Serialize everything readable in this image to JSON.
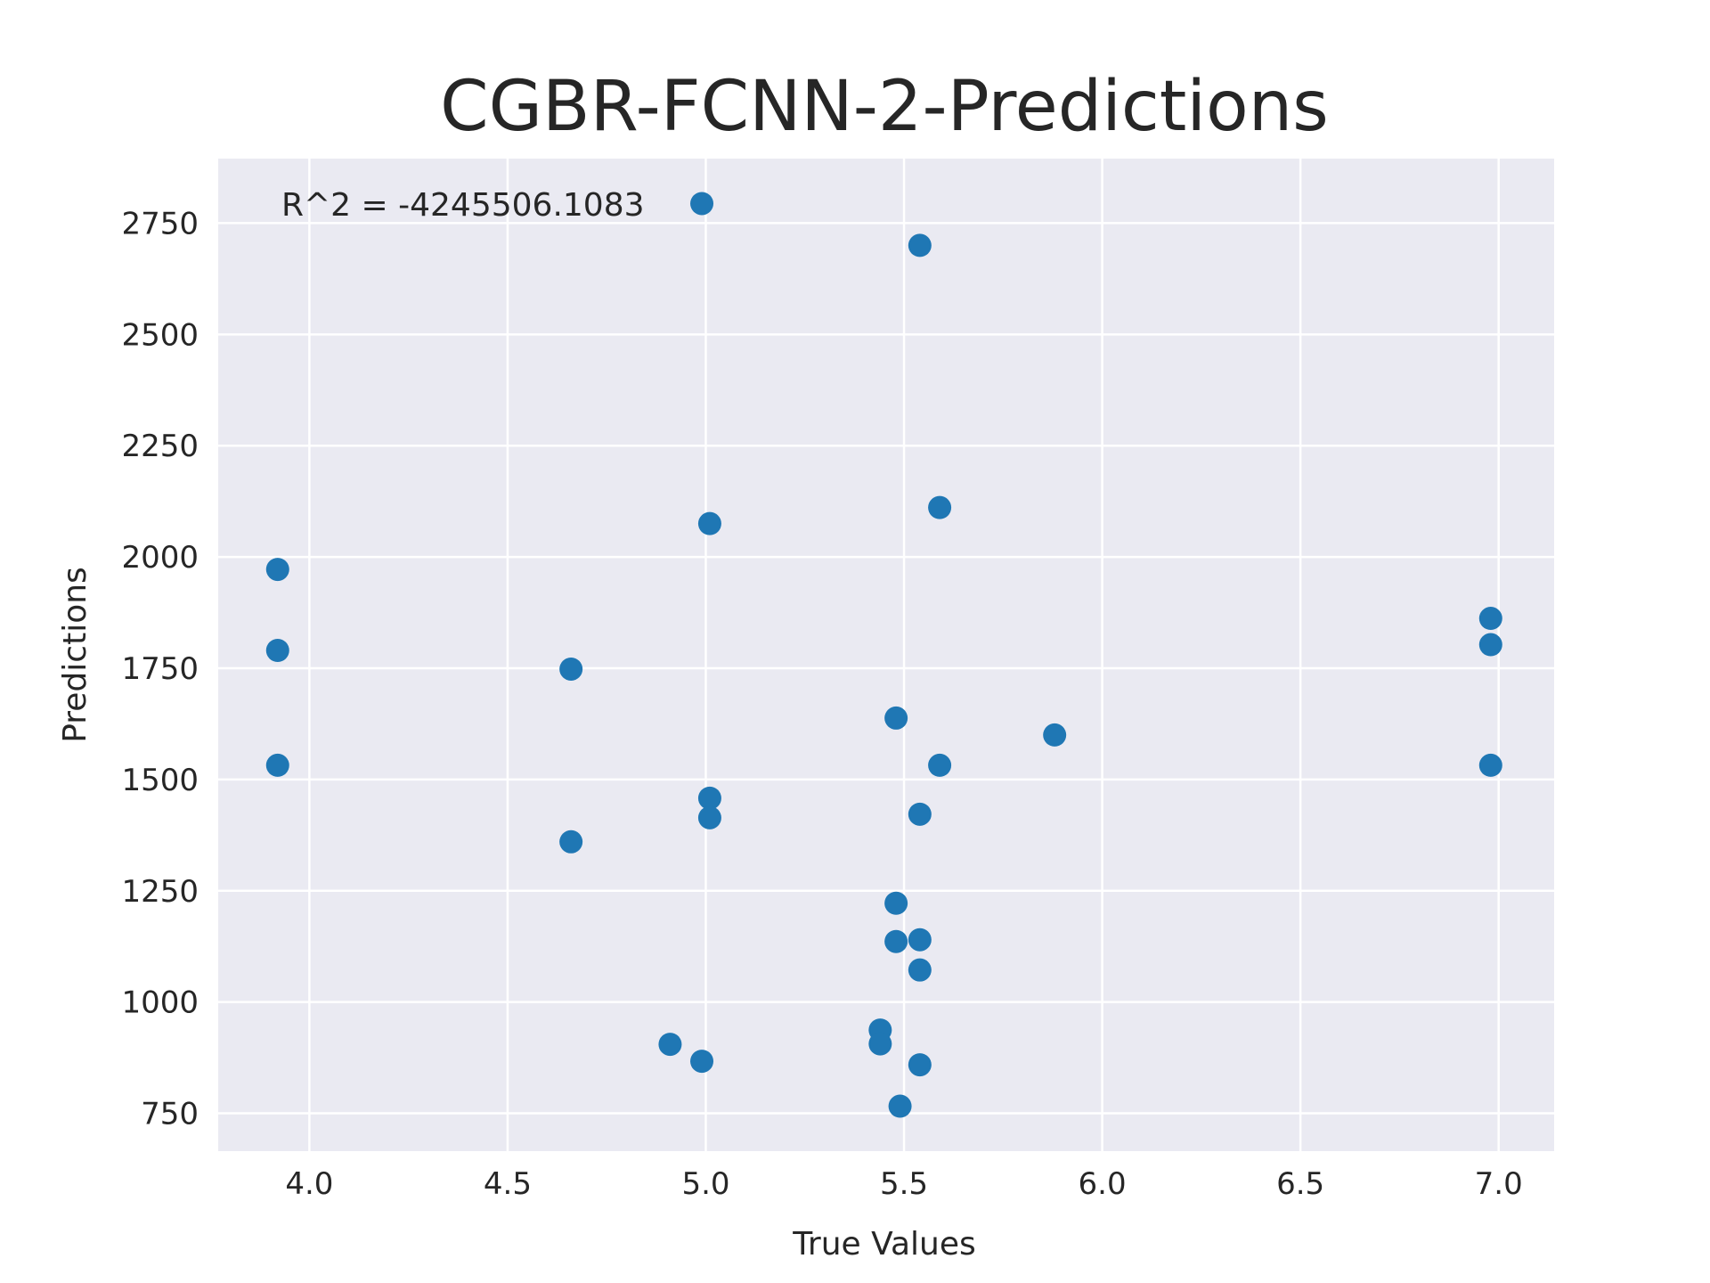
{
  "chart_data": {
    "type": "scatter",
    "title": "CGBR-FCNN-2-Predictions",
    "xlabel": "True Values",
    "ylabel": "Predictions",
    "xlim": [
      3.77,
      7.14
    ],
    "ylim": [
      665,
      2895
    ],
    "xticks": [
      4.0,
      4.5,
      5.0,
      5.5,
      6.0,
      6.5,
      7.0
    ],
    "xtick_labels": [
      "4.0",
      "4.5",
      "5.0",
      "5.5",
      "6.0",
      "6.5",
      "7.0"
    ],
    "yticks": [
      750,
      1000,
      1250,
      1500,
      1750,
      2000,
      2250,
      2500,
      2750
    ],
    "ytick_labels": [
      "750",
      "1000",
      "1250",
      "1500",
      "1750",
      "2000",
      "2250",
      "2500",
      "2750"
    ],
    "grid": true,
    "annotation": "R^2 = -4245506.1083",
    "marker_color": "#1f77b4",
    "background_color": "#eaeaf2",
    "points": [
      {
        "x": 3.92,
        "y": 1972
      },
      {
        "x": 3.92,
        "y": 1790
      },
      {
        "x": 3.92,
        "y": 1532
      },
      {
        "x": 4.66,
        "y": 1748
      },
      {
        "x": 4.66,
        "y": 1360
      },
      {
        "x": 4.91,
        "y": 905
      },
      {
        "x": 4.99,
        "y": 2794
      },
      {
        "x": 4.99,
        "y": 867
      },
      {
        "x": 5.01,
        "y": 2075
      },
      {
        "x": 5.01,
        "y": 1458
      },
      {
        "x": 5.01,
        "y": 1414
      },
      {
        "x": 5.44,
        "y": 937
      },
      {
        "x": 5.44,
        "y": 906
      },
      {
        "x": 5.48,
        "y": 1638
      },
      {
        "x": 5.48,
        "y": 1222
      },
      {
        "x": 5.48,
        "y": 1136
      },
      {
        "x": 5.49,
        "y": 766
      },
      {
        "x": 5.54,
        "y": 2700
      },
      {
        "x": 5.54,
        "y": 1422
      },
      {
        "x": 5.54,
        "y": 1140
      },
      {
        "x": 5.54,
        "y": 1072
      },
      {
        "x": 5.54,
        "y": 859
      },
      {
        "x": 5.59,
        "y": 2111
      },
      {
        "x": 5.59,
        "y": 1532
      },
      {
        "x": 5.88,
        "y": 1600
      },
      {
        "x": 6.98,
        "y": 1862
      },
      {
        "x": 6.98,
        "y": 1803
      },
      {
        "x": 6.98,
        "y": 1532
      }
    ]
  }
}
